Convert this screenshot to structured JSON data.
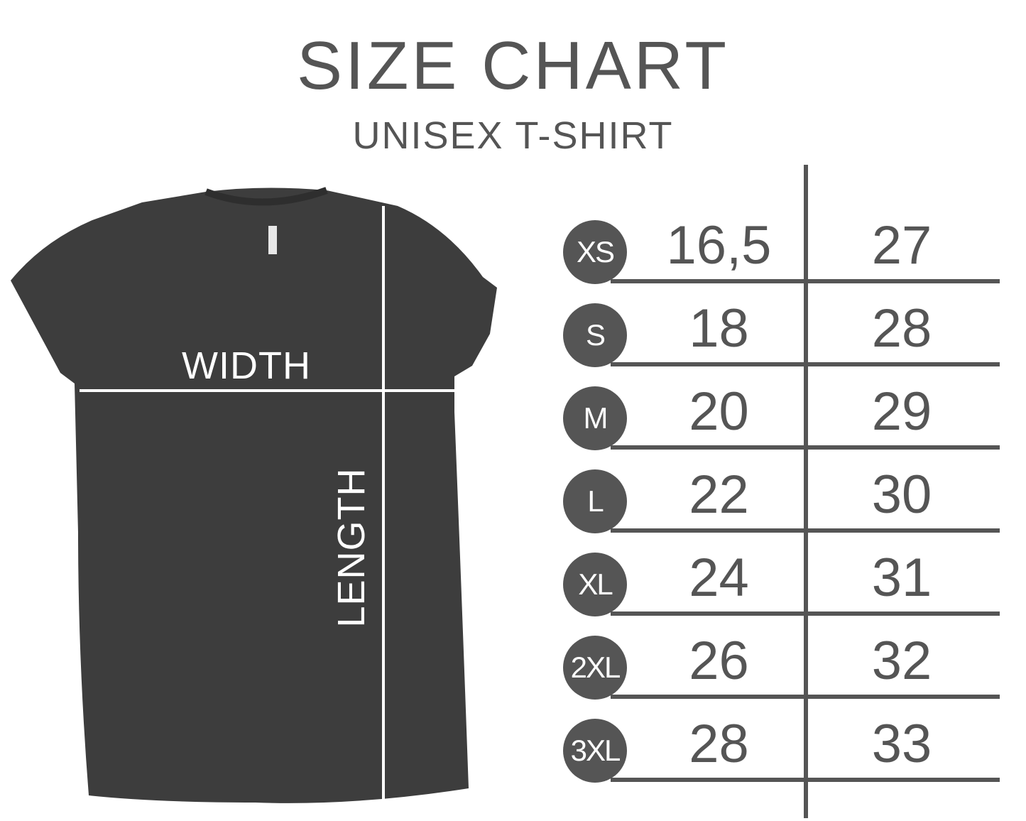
{
  "header": {
    "title": "SIZE CHART",
    "subtitle": "UNISEX T-SHIRT"
  },
  "shirt": {
    "width_label": "WIDTH",
    "length_label": "LENGTH",
    "color": "#3d3d3d",
    "icon": "t-shirt-photo"
  },
  "table": {
    "accent_color": "#555555",
    "rows": [
      {
        "size": "XS",
        "width": "16,5",
        "length": "27"
      },
      {
        "size": "S",
        "width": "18",
        "length": "28"
      },
      {
        "size": "M",
        "width": "20",
        "length": "29"
      },
      {
        "size": "L",
        "width": "22",
        "length": "30"
      },
      {
        "size": "XL",
        "width": "24",
        "length": "31"
      },
      {
        "size": "2XL",
        "width": "26",
        "length": "32"
      },
      {
        "size": "3XL",
        "width": "28",
        "length": "33"
      }
    ]
  }
}
